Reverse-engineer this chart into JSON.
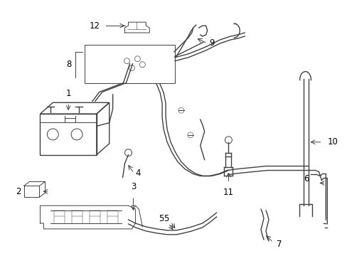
{
  "background_color": "#ffffff",
  "line_color": "#404040",
  "label_color": "#000000",
  "figsize": [
    4.89,
    3.6
  ],
  "dpi": 100
}
